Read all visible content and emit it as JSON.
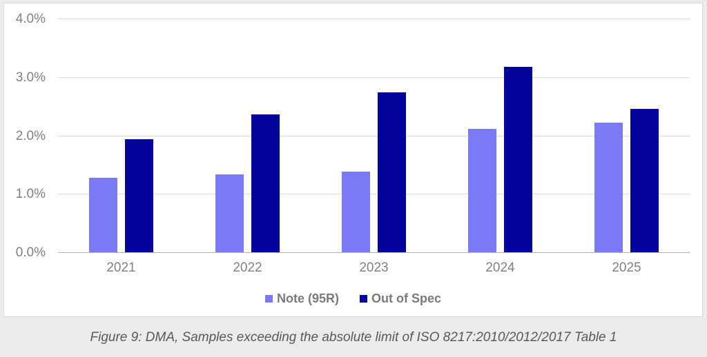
{
  "figure": {
    "caption": "Figure 9: DMA, Samples exceeding the absolute limit of ISO 8217:2010/2012/2017 Table 1"
  },
  "chart_data": {
    "type": "bar",
    "title": "",
    "xlabel": "",
    "ylabel": "",
    "categories": [
      "2021",
      "2022",
      "2023",
      "2024",
      "2025"
    ],
    "series": [
      {
        "name": "Note (95R)",
        "color": "#7a7af7",
        "values": [
          1.28,
          1.33,
          1.38,
          2.11,
          2.22
        ]
      },
      {
        "name": "Out of Spec",
        "color": "#030399",
        "values": [
          1.93,
          2.36,
          2.74,
          3.18,
          2.45
        ]
      }
    ],
    "ylim": [
      0,
      4
    ],
    "yticks": [
      {
        "value": 0,
        "label": "0.0%"
      },
      {
        "value": 1,
        "label": "1.0%"
      },
      {
        "value": 2,
        "label": "2.0%"
      },
      {
        "value": 3,
        "label": "3.0%"
      },
      {
        "value": 4,
        "label": "4.0%"
      }
    ],
    "grid": true,
    "legend_position": "bottom",
    "unit": "%"
  },
  "colors": {
    "page_background": "#ebebee",
    "panel_background": "#ffffff",
    "panel_border": "#d6d6da",
    "gridline": "#dadada",
    "axis_line": "#b3b3b3",
    "tick_label": "#808080",
    "legend_text": "#7a7a7a",
    "caption_text": "#595959"
  }
}
